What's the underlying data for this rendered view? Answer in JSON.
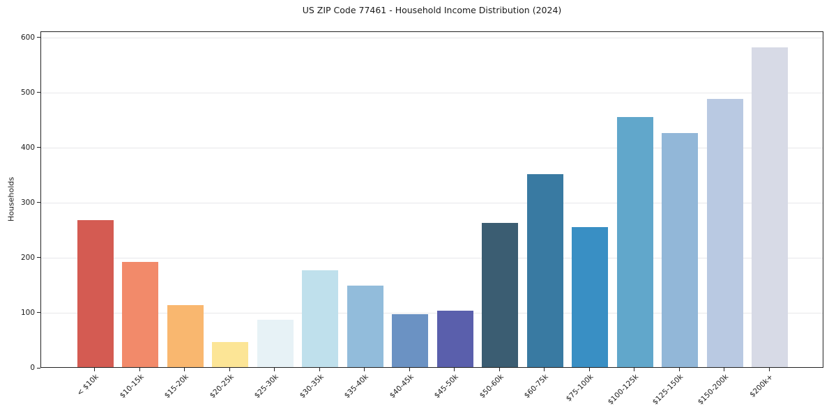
{
  "chart_data": {
    "type": "bar",
    "title": "US ZIP Code 77461 - Household Income Distribution (2024)",
    "xlabel": "",
    "ylabel": "Households",
    "categories": [
      "< $10k",
      "$10-15k",
      "$15-20k",
      "$20-25k",
      "$25-30k",
      "$30-35k",
      "$35-40k",
      "$40-45k",
      "$45-50k",
      "$50-60k",
      "$60-75k",
      "$75-100k",
      "$100-125k",
      "$125-150k",
      "$150-200k",
      "$200k+"
    ],
    "values": [
      267,
      191,
      113,
      46,
      86,
      176,
      148,
      96,
      103,
      262,
      350,
      254,
      454,
      425,
      487,
      581
    ],
    "bar_colors": [
      "#d45b52",
      "#f28a6a",
      "#f9b76f",
      "#fce596",
      "#e7f2f6",
      "#bfe0ec",
      "#92bcdb",
      "#6b92c3",
      "#5a5fac",
      "#3b5d72",
      "#397aa2",
      "#398fc4",
      "#61a7cb",
      "#92b7d8",
      "#b9c9e2",
      "#d7dae6"
    ],
    "yticks": [
      0,
      100,
      200,
      300,
      400,
      500,
      600
    ],
    "ylim": [
      0,
      611
    ],
    "grid": true,
    "legend": "none",
    "colors": {
      "grid": "#e7e7ea",
      "axis": "#222222",
      "text": "#1a1a1a",
      "background": "#ffffff"
    }
  }
}
